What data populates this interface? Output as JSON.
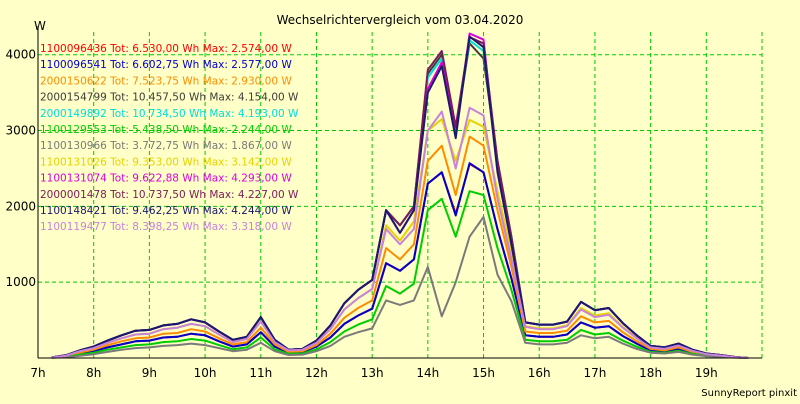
{
  "chart_data": {
    "type": "line",
    "title": "Wechselrichtervergleich vom 03.04.2020",
    "ylabel": "W",
    "xlabel": "",
    "footer": "SunnyReport pinxit",
    "grid": true,
    "legend_placement": "top-left",
    "ylim": [
      0,
      4300
    ],
    "yticks": [
      1000,
      2000,
      3000,
      4000
    ],
    "xlim": [
      7,
      20
    ],
    "xticks": [
      {
        "value": 7,
        "label": "7h"
      },
      {
        "value": 8,
        "label": "8h"
      },
      {
        "value": 9,
        "label": "9h"
      },
      {
        "value": 10,
        "label": "10h"
      },
      {
        "value": 11,
        "label": "11h"
      },
      {
        "value": 12,
        "label": "12h"
      },
      {
        "value": 13,
        "label": "13h"
      },
      {
        "value": 14,
        "label": "14h"
      },
      {
        "value": 15,
        "label": "15h"
      },
      {
        "value": 16,
        "label": "16h"
      },
      {
        "value": 17,
        "label": "17h"
      },
      {
        "value": 18,
        "label": "18h"
      },
      {
        "value": 19,
        "label": "19h"
      }
    ],
    "x": [
      7.25,
      7.5,
      7.75,
      8.0,
      8.25,
      8.5,
      8.75,
      9.0,
      9.25,
      9.5,
      9.75,
      10.0,
      10.25,
      10.5,
      10.75,
      11.0,
      11.25,
      11.5,
      11.75,
      12.0,
      12.25,
      12.5,
      12.75,
      13.0,
      13.25,
      13.5,
      13.75,
      14.0,
      14.25,
      14.5,
      14.75,
      15.0,
      15.25,
      15.5,
      15.75,
      16.0,
      16.25,
      16.5,
      16.75,
      17.0,
      17.25,
      17.5,
      17.75,
      18.0,
      18.25,
      18.5,
      18.75,
      19.0,
      19.25,
      19.5,
      19.75
    ],
    "series": [
      {
        "name": "1100096436",
        "legend": "1100096436 Tot: 6.530,00 Wh Max: 2.574,00 W",
        "color": "#ff0000",
        "values": [
          5,
          20,
          60,
          90,
          140,
          180,
          220,
          230,
          270,
          280,
          320,
          300,
          220,
          150,
          180,
          340,
          150,
          70,
          80,
          150,
          270,
          450,
          560,
          650,
          1250,
          1150,
          1300,
          2300,
          2450,
          1900,
          2560,
          2450,
          1700,
          1050,
          300,
          280,
          280,
          310,
          470,
          400,
          420,
          290,
          190,
          100,
          90,
          120,
          70,
          40,
          30,
          10,
          0
        ]
      },
      {
        "name": "1100096541",
        "legend": "1100096541 Tot: 6.602,75 Wh Max: 2.577,00 W",
        "color": "#0000cd",
        "values": [
          5,
          20,
          60,
          90,
          140,
          180,
          220,
          230,
          270,
          280,
          320,
          300,
          220,
          150,
          180,
          340,
          150,
          70,
          80,
          150,
          270,
          450,
          560,
          650,
          1250,
          1150,
          1300,
          2300,
          2450,
          1880,
          2570,
          2450,
          1700,
          1050,
          300,
          280,
          280,
          310,
          470,
          400,
          420,
          290,
          190,
          100,
          90,
          120,
          70,
          40,
          30,
          10,
          0
        ]
      },
      {
        "name": "2000150622",
        "legend": "2000150622 Tot: 7.523,75 Wh Max: 2.930,00 W",
        "color": "#ff8c00",
        "values": [
          5,
          25,
          70,
          110,
          170,
          220,
          260,
          270,
          320,
          330,
          380,
          350,
          260,
          180,
          210,
          400,
          180,
          80,
          90,
          170,
          320,
          530,
          660,
          760,
          1450,
          1300,
          1500,
          2600,
          2800,
          2150,
          2920,
          2800,
          1950,
          1200,
          350,
          330,
          330,
          360,
          550,
          470,
          490,
          340,
          220,
          120,
          100,
          140,
          80,
          45,
          30,
          10,
          0
        ]
      },
      {
        "name": "2000154799",
        "legend": "2000154799 Tot: 10.457,50 Wh Max: 4.154,00 W",
        "color": "#3c3c3c",
        "values": [
          8,
          35,
          100,
          150,
          230,
          300,
          360,
          370,
          430,
          450,
          510,
          470,
          350,
          240,
          280,
          540,
          240,
          110,
          120,
          230,
          430,
          720,
          900,
          1030,
          1950,
          1750,
          2000,
          3750,
          4000,
          3000,
          4150,
          3950,
          2600,
          1600,
          470,
          440,
          440,
          480,
          740,
          630,
          660,
          460,
          300,
          160,
          140,
          190,
          110,
          60,
          40,
          15,
          0
        ]
      },
      {
        "name": "2000149892",
        "legend": "2000149892 Tot: 10.734,50 Wh Max: 4.193,00 W",
        "color": "#00dcdc",
        "values": [
          8,
          35,
          100,
          150,
          230,
          300,
          360,
          370,
          430,
          450,
          510,
          470,
          350,
          240,
          280,
          540,
          240,
          110,
          120,
          230,
          430,
          720,
          900,
          1030,
          1950,
          1750,
          2000,
          3700,
          3950,
          3000,
          4190,
          4050,
          2600,
          1600,
          470,
          440,
          440,
          480,
          740,
          630,
          660,
          460,
          300,
          160,
          140,
          190,
          110,
          60,
          40,
          15,
          0
        ]
      },
      {
        "name": "1100129553",
        "legend": "1100129553 Tot: 5.438,50 Wh Max: 2.244,00 W",
        "color": "#00cd00",
        "values": [
          4,
          15,
          45,
          70,
          110,
          140,
          170,
          180,
          210,
          220,
          250,
          230,
          170,
          115,
          140,
          270,
          115,
          55,
          60,
          115,
          210,
          350,
          440,
          510,
          950,
          850,
          980,
          1950,
          2100,
          1600,
          2200,
          2150,
          1450,
          900,
          240,
          220,
          220,
          240,
          370,
          310,
          330,
          230,
          150,
          80,
          70,
          95,
          55,
          30,
          20,
          8,
          0
        ]
      },
      {
        "name": "1100130966",
        "legend": "1100130966 Tot: 3.772,75 Wh Max: 1.867,00 W",
        "color": "#7a7a7a",
        "values": [
          3,
          10,
          30,
          50,
          80,
          110,
          130,
          140,
          160,
          170,
          190,
          170,
          130,
          90,
          110,
          200,
          90,
          40,
          45,
          90,
          160,
          280,
          340,
          390,
          760,
          700,
          760,
          1200,
          550,
          1000,
          1600,
          1860,
          1100,
          750,
          200,
          180,
          180,
          200,
          300,
          260,
          280,
          190,
          120,
          70,
          60,
          80,
          45,
          25,
          15,
          5,
          0
        ]
      },
      {
        "name": "1100131026",
        "legend": "1100131026 Tot: 9.353,00 Wh Max: 3.142,00 W",
        "color": "#e6d200",
        "values": [
          7,
          30,
          90,
          130,
          200,
          260,
          310,
          320,
          380,
          400,
          450,
          420,
          310,
          210,
          250,
          480,
          210,
          100,
          110,
          200,
          380,
          640,
          790,
          910,
          1750,
          1550,
          1800,
          3000,
          3150,
          2600,
          3140,
          3050,
          2200,
          1400,
          420,
          390,
          390,
          430,
          660,
          560,
          590,
          410,
          270,
          140,
          120,
          170,
          100,
          55,
          35,
          12,
          0
        ]
      },
      {
        "name": "1100131074",
        "legend": "1100131074 Tot: 9.622,88 Wh Max: 4.293,00 W",
        "color": "#dc00dc",
        "values": [
          8,
          35,
          100,
          150,
          230,
          300,
          360,
          370,
          430,
          450,
          510,
          470,
          350,
          240,
          280,
          540,
          240,
          110,
          120,
          230,
          430,
          720,
          900,
          1030,
          1950,
          1650,
          1950,
          3550,
          3900,
          2950,
          4280,
          4200,
          2500,
          1550,
          470,
          440,
          440,
          480,
          740,
          630,
          660,
          460,
          300,
          160,
          140,
          190,
          110,
          60,
          40,
          15,
          0
        ]
      },
      {
        "name": "2000001478",
        "legend": "2000001478 Tot: 10.737,50 Wh Max: 4.227,00 W",
        "color": "#7b1a58",
        "values": [
          8,
          35,
          100,
          150,
          230,
          300,
          360,
          370,
          430,
          450,
          510,
          470,
          350,
          240,
          280,
          540,
          240,
          110,
          120,
          230,
          430,
          720,
          900,
          1030,
          1950,
          1750,
          2000,
          3800,
          4050,
          3050,
          4230,
          4150,
          2600,
          1600,
          470,
          440,
          440,
          480,
          740,
          630,
          660,
          460,
          300,
          160,
          140,
          190,
          110,
          60,
          40,
          15,
          0
        ]
      },
      {
        "name": "1100148421",
        "legend": "1100148421 Tot: 9.462,25 Wh Max: 4.244,00 W",
        "color": "#191970",
        "values": [
          8,
          35,
          100,
          150,
          230,
          300,
          360,
          370,
          430,
          450,
          510,
          470,
          350,
          240,
          280,
          540,
          240,
          110,
          120,
          230,
          430,
          720,
          900,
          1030,
          1950,
          1650,
          1950,
          3500,
          3850,
          2900,
          4240,
          4100,
          2450,
          1500,
          470,
          440,
          440,
          480,
          740,
          630,
          660,
          460,
          300,
          160,
          140,
          190,
          110,
          60,
          40,
          15,
          0
        ]
      },
      {
        "name": "1100119477",
        "legend": "1100119477 Tot: 8.398,25 Wh Max: 3.318,00 W",
        "color": "#c882dc",
        "values": [
          7,
          30,
          90,
          130,
          200,
          260,
          310,
          320,
          380,
          400,
          450,
          420,
          310,
          210,
          250,
          480,
          210,
          100,
          110,
          200,
          380,
          640,
          790,
          910,
          1700,
          1500,
          1700,
          3000,
          3250,
          2500,
          3300,
          3200,
          2100,
          1300,
          410,
          380,
          380,
          420,
          640,
          540,
          570,
          400,
          260,
          140,
          120,
          165,
          95,
          52,
          33,
          12,
          0
        ]
      }
    ]
  }
}
